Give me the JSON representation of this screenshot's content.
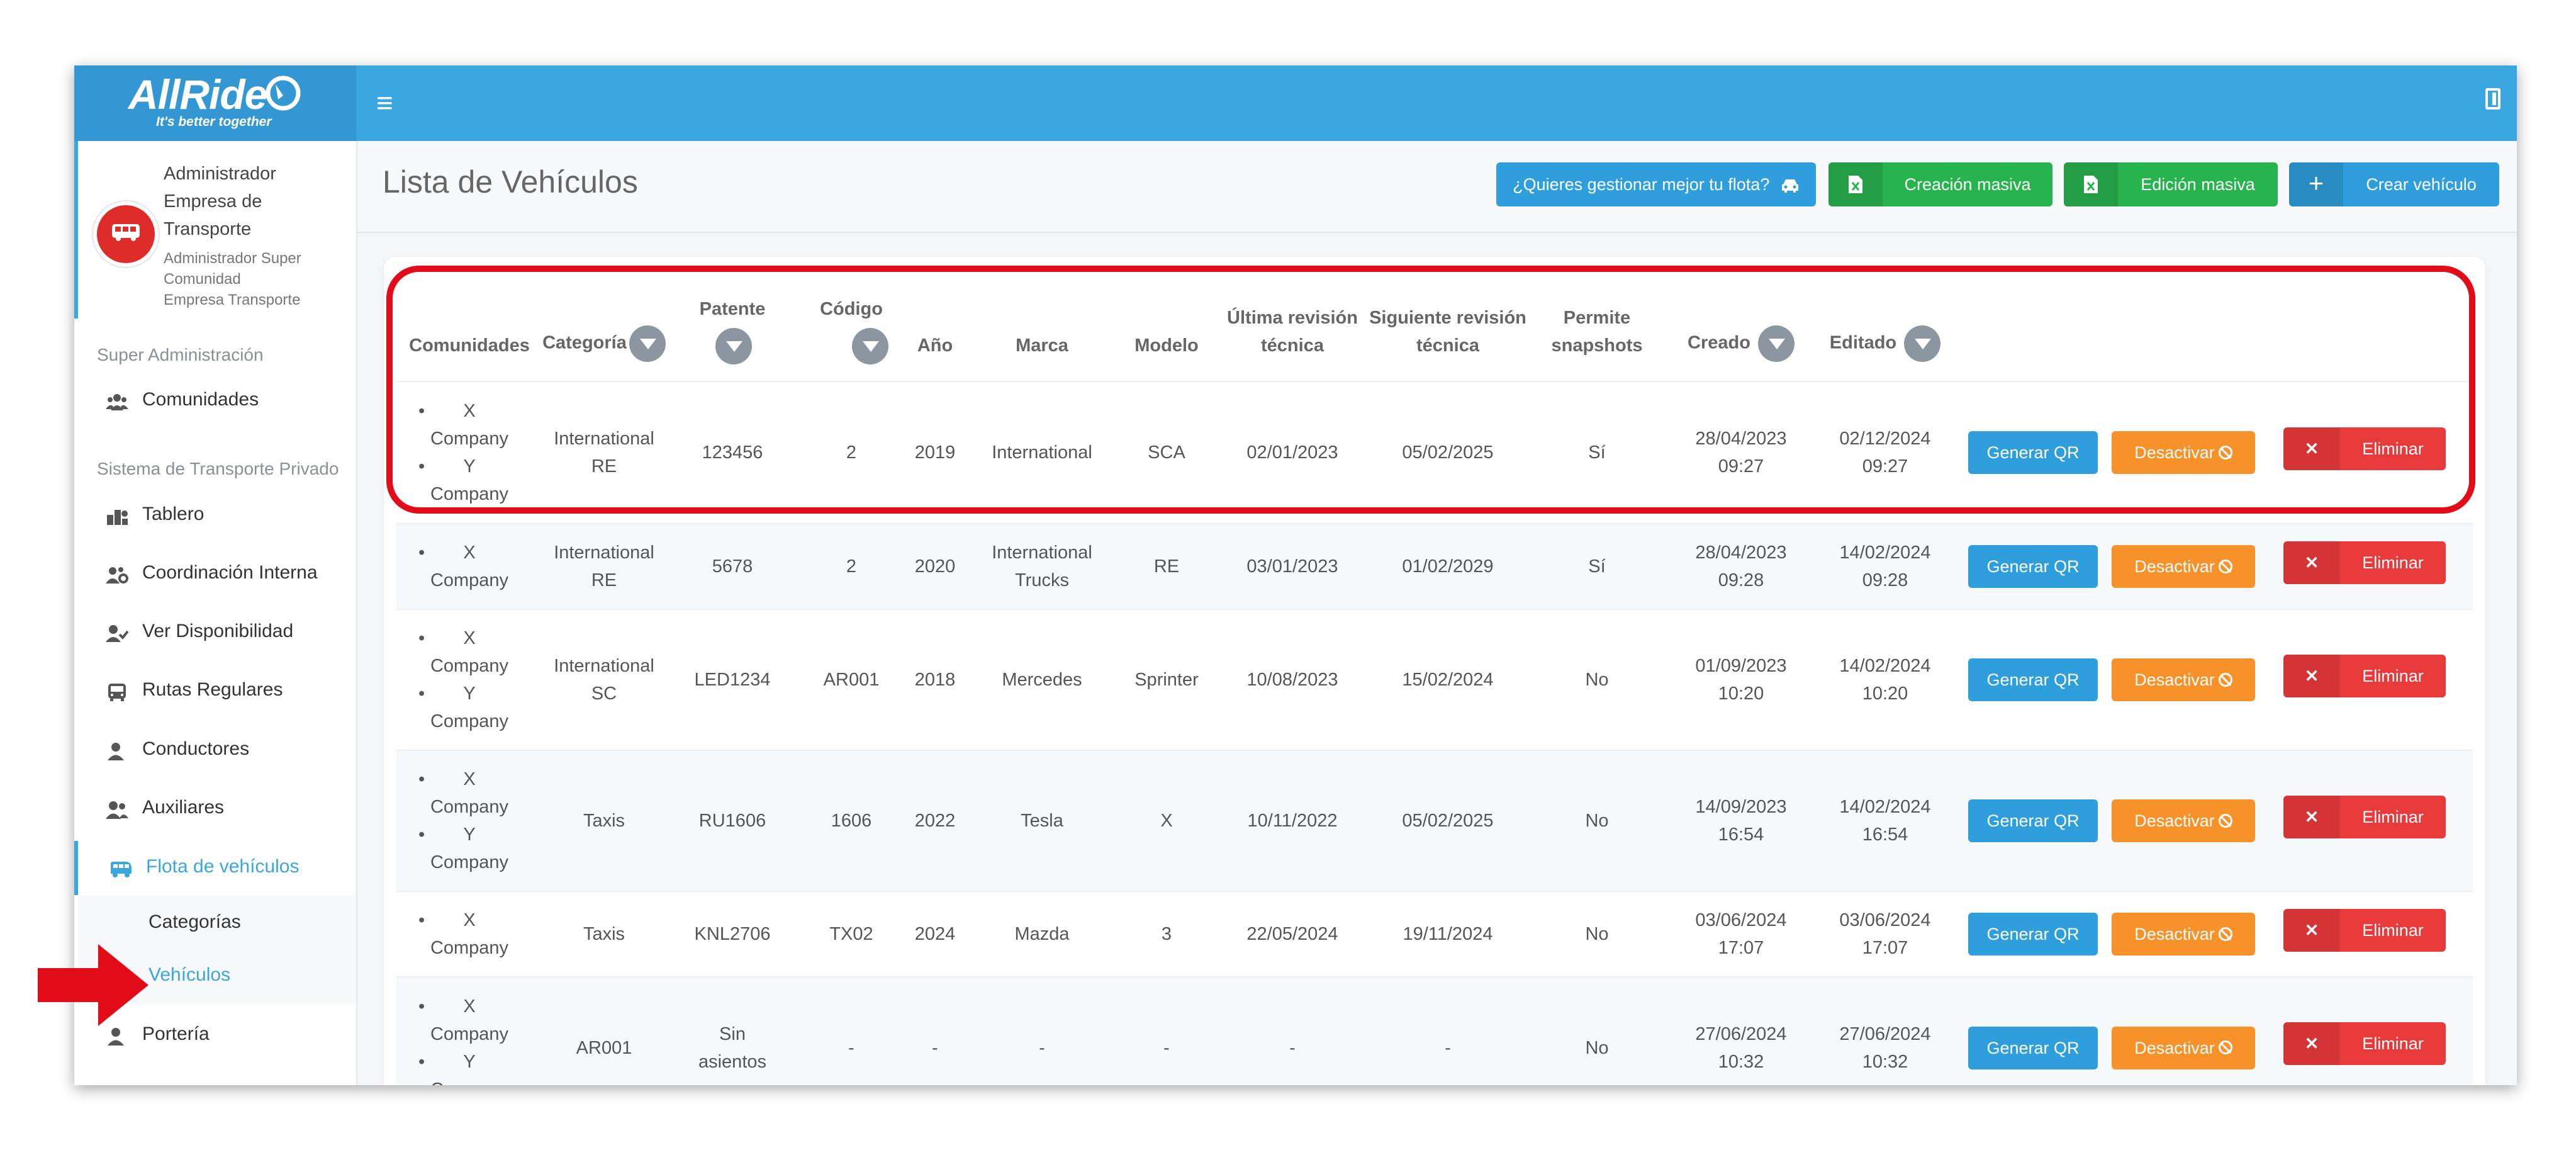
{
  "app": {
    "logo_text": "AllRide",
    "logo_tagline": "It's better together",
    "colors": {
      "primary": "#3aa6e0",
      "green": "#27b34d",
      "orange": "#f7922a",
      "red": "#e8393b",
      "highlight": "#e20c18"
    }
  },
  "profile": {
    "role_lines": [
      "Administrador",
      "Empresa de",
      "Transporte"
    ],
    "sub_lines": [
      "Administrador Super",
      "Comunidad",
      "Empresa Transporte"
    ]
  },
  "sidebar": {
    "section_super": "Super Administración",
    "item_comunidades": "Comunidades",
    "section_sistema": "Sistema de Transporte Privado",
    "items": [
      {
        "label": "Tablero",
        "icon": "dashboard-icon"
      },
      {
        "label": "Coordinación Interna",
        "icon": "users-cog-icon"
      },
      {
        "label": "Ver Disponibilidad",
        "icon": "user-check-icon"
      },
      {
        "label": "Rutas Regulares",
        "icon": "bus-icon"
      },
      {
        "label": "Conductores",
        "icon": "user-icon"
      },
      {
        "label": "Auxiliares",
        "icon": "users-icon"
      },
      {
        "label": "Flota de vehículos",
        "icon": "shuttle-icon"
      }
    ],
    "sub_categorias": "Categorías",
    "sub_vehiculos": "Vehículos",
    "item_porteria": "Portería"
  },
  "header": {
    "title": "Lista de Vehículos",
    "btn_flota": "¿Quieres gestionar mejor tu flota?",
    "btn_creacion": "Creación masiva",
    "btn_edicion": "Edición masiva",
    "btn_crear": "Crear vehículo"
  },
  "table": {
    "headers": {
      "comunidades": "Comunidades",
      "categoria": "Categoría",
      "patente": "Patente",
      "codigo": "Código",
      "anio": "Año",
      "marca": "Marca",
      "modelo": "Modelo",
      "ultima_1": "Última revisión",
      "ultima_2": "técnica",
      "siguiente_1": "Siguiente revisión",
      "siguiente_2": "técnica",
      "permite_1": "Permite",
      "permite_2": "snapshots",
      "creado": "Creado",
      "editado": "Editado"
    },
    "actions": {
      "qr": "Generar QR",
      "desactivar": "Desactivar",
      "eliminar": "Eliminar"
    },
    "rows": [
      {
        "c1a": "X",
        "c1b": "Company",
        "c2a": "Y",
        "c2b": "Company",
        "cat1": "International",
        "cat2": "RE",
        "patente1": "123456",
        "patente2": "",
        "codigo": "2",
        "anio": "2019",
        "marca1": "International",
        "marca2": "",
        "modelo": "SCA",
        "ultima": "02/01/2023",
        "siguiente": "05/02/2025",
        "snap": "Sí",
        "creado_d": "28/04/2023",
        "creado_t": "09:27",
        "editado_d": "02/12/2024",
        "editado_t": "09:27"
      },
      {
        "c1a": "X",
        "c1b": "Company",
        "c2a": "",
        "c2b": "",
        "cat1": "International",
        "cat2": "RE",
        "patente1": "5678",
        "patente2": "",
        "codigo": "2",
        "anio": "2020",
        "marca1": "International",
        "marca2": "Trucks",
        "modelo": "RE",
        "ultima": "03/01/2023",
        "siguiente": "01/02/2029",
        "snap": "Sí",
        "creado_d": "28/04/2023",
        "creado_t": "09:28",
        "editado_d": "14/02/2024",
        "editado_t": "09:28"
      },
      {
        "c1a": "X",
        "c1b": "Company",
        "c2a": "Y",
        "c2b": "Company",
        "cat1": "International",
        "cat2": "SC",
        "patente1": "LED1234",
        "patente2": "",
        "codigo": "AR001",
        "anio": "2018",
        "marca1": "Mercedes",
        "marca2": "",
        "modelo": "Sprinter",
        "ultima": "10/08/2023",
        "siguiente": "15/02/2024",
        "snap": "No",
        "creado_d": "01/09/2023",
        "creado_t": "10:20",
        "editado_d": "14/02/2024",
        "editado_t": "10:20"
      },
      {
        "c1a": "X",
        "c1b": "Company",
        "c2a": "Y",
        "c2b": "Company",
        "cat1": "Taxis",
        "cat2": "",
        "patente1": "RU1606",
        "patente2": "",
        "codigo": "1606",
        "anio": "2022",
        "marca1": "Tesla",
        "marca2": "",
        "modelo": "X",
        "ultima": "10/11/2022",
        "siguiente": "05/02/2025",
        "snap": "No",
        "creado_d": "14/09/2023",
        "creado_t": "16:54",
        "editado_d": "14/02/2024",
        "editado_t": "16:54"
      },
      {
        "c1a": "X",
        "c1b": "Company",
        "c2a": "",
        "c2b": "",
        "cat1": "Taxis",
        "cat2": "",
        "patente1": "KNL2706",
        "patente2": "",
        "codigo": "TX02",
        "anio": "2024",
        "marca1": "Mazda",
        "marca2": "",
        "modelo": "3",
        "ultima": "22/05/2024",
        "siguiente": "19/11/2024",
        "snap": "No",
        "creado_d": "03/06/2024",
        "creado_t": "17:07",
        "editado_d": "03/06/2024",
        "editado_t": "17:07"
      },
      {
        "c1a": "X",
        "c1b": "Company",
        "c2a": "Y",
        "c2b": "Company",
        "cat1": "AR001",
        "cat2": "",
        "patente1": "Sin",
        "patente2": "asientos",
        "codigo": "-",
        "anio": "-",
        "marca1": "-",
        "marca2": "",
        "modelo": "-",
        "ultima": "-",
        "siguiente": "-",
        "snap": "No",
        "creado_d": "27/06/2024",
        "creado_t": "10:32",
        "editado_d": "27/06/2024",
        "editado_t": "10:32"
      }
    ]
  }
}
